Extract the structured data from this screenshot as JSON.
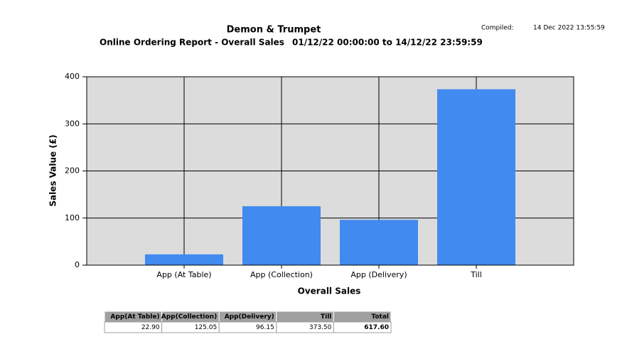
{
  "header": {
    "title": "Demon & Trumpet",
    "subtitle": "Online Ordering Report - Overall Sales",
    "period": "01/12/22 00:00:00 to 14/12/22 23:59:59",
    "compiled_label": "Compiled:",
    "compiled_value": "14 Dec 2022 13:55:59"
  },
  "chart_data": {
    "type": "bar",
    "x_label": "Overall Sales",
    "y_label": "Sales Value (£)",
    "categories": [
      "App (At Table)",
      "App (Collection)",
      "App (Delivery)",
      "Till"
    ],
    "values": [
      22.9,
      125.05,
      96.15,
      373.5
    ],
    "color": "#418af0",
    "ylim": [
      0,
      400
    ],
    "yticks": [
      0,
      100,
      200,
      300,
      400
    ],
    "grid": true
  },
  "table": {
    "columns": [
      "App(At Table)",
      "App(Collection)",
      "App(Delivery)",
      "Till",
      "Total"
    ],
    "rows": [
      [
        "22.90",
        "125.05",
        "96.15",
        "373.50",
        "617.60"
      ]
    ]
  }
}
